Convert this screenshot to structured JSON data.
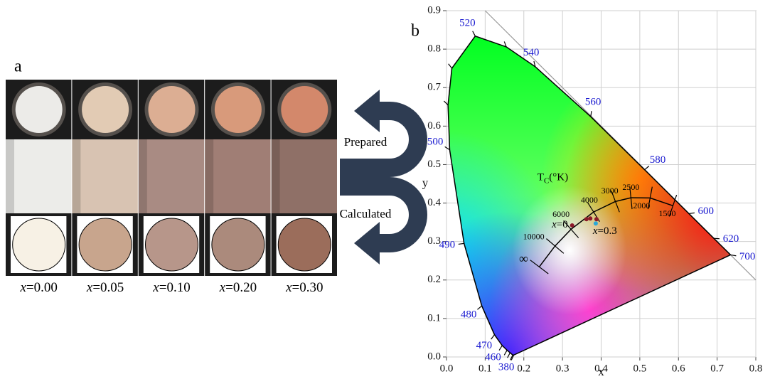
{
  "panel_a": {
    "label": "a",
    "prepared": "Prepared",
    "calculated": "Calculated",
    "sample_labels": [
      {
        "var": "x",
        "rest": "=0.00"
      },
      {
        "var": "x",
        "rest": "=0.05"
      },
      {
        "var": "x",
        "rest": "=0.10"
      },
      {
        "var": "x",
        "rest": "=0.20"
      },
      {
        "var": "x",
        "rest": "=0.30"
      }
    ],
    "calculated_colors": [
      "#f7f1e5",
      "#c8a58d",
      "#b7968a",
      "#ab8a7c",
      "#9b6d5b"
    ]
  },
  "chart_data": {
    "type": "scatter",
    "label": "b",
    "x_label": "x",
    "y_label": "y",
    "xlim": [
      0,
      0.8
    ],
    "ylim": [
      0,
      0.9
    ],
    "xticks": [
      {
        "value": 0,
        "label": "0.0"
      },
      0.1,
      0.2,
      0.3,
      0.4,
      0.5,
      0.6,
      0.7,
      0.8
    ],
    "yticks": [
      {
        "value": 0,
        "label": "0.0"
      },
      0.1,
      0.2,
      0.3,
      0.4,
      0.5,
      0.6,
      0.7,
      0.8,
      0.9
    ],
    "grid": true,
    "spectral_locus": {
      "wavelengths": [
        380,
        null,
        null,
        null,
        460,
        470,
        480,
        490,
        500,
        null,
        null,
        520,
        null,
        540,
        560,
        580,
        600,
        620,
        700
      ],
      "x": [
        0.1741,
        0.1714,
        0.1644,
        0.1566,
        0.144,
        0.1241,
        0.0913,
        0.0454,
        0.0082,
        0.0039,
        0.0139,
        0.0743,
        0.1547,
        0.2296,
        0.3731,
        0.5125,
        0.627,
        0.6915,
        0.7347
      ],
      "y": [
        0.005,
        0.0051,
        0.0109,
        0.0177,
        0.0297,
        0.0578,
        0.1327,
        0.295,
        0.5384,
        0.6548,
        0.7502,
        0.8338,
        0.8059,
        0.7543,
        0.6245,
        0.4866,
        0.3725,
        0.3083,
        0.2653
      ]
    },
    "planckian_locus": {
      "title": [
        "T",
        "C",
        "(°K)"
      ],
      "labels": [
        "1500",
        "2000",
        "2500",
        "3000",
        "4000",
        "6000",
        "10000",
        "∞"
      ],
      "x": [
        0.5857,
        0.5267,
        0.477,
        0.4369,
        0.3805,
        0.3221,
        0.2807,
        0.2399
      ],
      "y": [
        0.3931,
        0.4133,
        0.4137,
        0.4041,
        0.3768,
        0.3318,
        0.2884,
        0.2341
      ]
    },
    "series": [
      {
        "color": "#8b1a2a",
        "x": [
          0.325,
          0.362,
          0.372,
          0.388
        ],
        "y": [
          0.342,
          0.358,
          0.36,
          0.358
        ]
      },
      {
        "color": "#2aa8d8",
        "x": [
          0.386
        ],
        "y": [
          0.347
        ]
      }
    ],
    "annotations": [
      {
        "var": "x",
        "rest": "=0"
      },
      {
        "var": "x",
        "rest": "=0.3"
      }
    ]
  }
}
